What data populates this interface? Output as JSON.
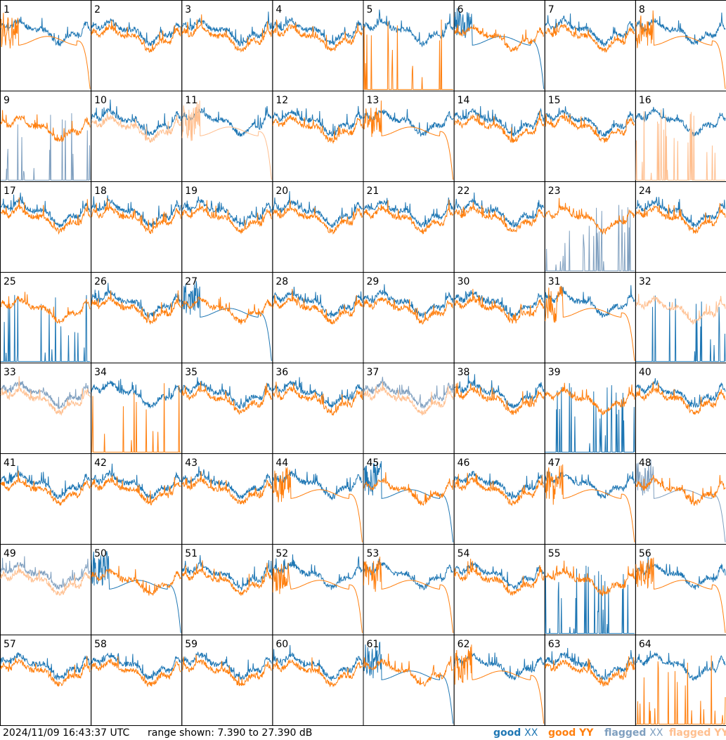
{
  "chart_data": {
    "type": "line",
    "panel_count": 64,
    "panel_labels": [
      "1",
      "2",
      "3",
      "4",
      "5",
      "6",
      "7",
      "8",
      "9",
      "10",
      "11",
      "12",
      "13",
      "14",
      "15",
      "16",
      "17",
      "18",
      "19",
      "20",
      "21",
      "22",
      "23",
      "24",
      "25",
      "26",
      "27",
      "28",
      "29",
      "30",
      "31",
      "32",
      "33",
      "34",
      "35",
      "36",
      "37",
      "38",
      "39",
      "40",
      "41",
      "42",
      "43",
      "44",
      "45",
      "46",
      "47",
      "48",
      "49",
      "50",
      "51",
      "52",
      "53",
      "54",
      "55",
      "56",
      "57",
      "58",
      "59",
      "60",
      "61",
      "62",
      "63",
      "64"
    ],
    "range_db": [
      7.39,
      27.39
    ],
    "grid": false,
    "legend_placement": "bottom-right",
    "series": [
      {
        "name": "good XX",
        "color": "#1f77b4"
      },
      {
        "name": "good YY",
        "color": "#ff7f0e"
      },
      {
        "name": "flagged XX",
        "color": "#7f9fbf"
      },
      {
        "name": "flagged YY",
        "color": "#ffbf8f"
      }
    ],
    "panel_states": {
      "1": {
        "xx": "good",
        "yy": "good-rolloff"
      },
      "5": {
        "xx": "good",
        "yy": "spikes"
      },
      "6": {
        "xx": "good-rolloff",
        "yy": "good"
      },
      "8": {
        "xx": "good",
        "yy": "good-rolloff"
      },
      "9": {
        "xx": "flagged-spikes",
        "yy": "good"
      },
      "10": {
        "xx": "good",
        "yy": "flagged"
      },
      "11": {
        "xx": "good",
        "yy": "flagged-rolloff"
      },
      "13": {
        "xx": "good",
        "yy": "good-rolloff"
      },
      "16": {
        "xx": "good",
        "yy": "flagged-spikes"
      },
      "23": {
        "xx": "flagged-spikes",
        "yy": "good"
      },
      "25": {
        "xx": "spikes",
        "yy": "good"
      },
      "27": {
        "xx": "good-rolloff",
        "yy": "good"
      },
      "31": {
        "xx": "good",
        "yy": "good-rolloff"
      },
      "32": {
        "xx": "spikes",
        "yy": "flagged"
      },
      "33": {
        "xx": "flagged",
        "yy": "flagged"
      },
      "34": {
        "xx": "good",
        "yy": "spikes"
      },
      "37": {
        "xx": "flagged",
        "yy": "flagged"
      },
      "39": {
        "xx": "spikes",
        "yy": "good"
      },
      "44": {
        "xx": "good",
        "yy": "good-rolloff"
      },
      "45": {
        "xx": "good-rolloff",
        "yy": "good"
      },
      "47": {
        "xx": "good",
        "yy": "good-rolloff"
      },
      "48": {
        "xx": "flagged-rolloff",
        "yy": "good"
      },
      "49": {
        "xx": "flagged",
        "yy": "flagged"
      },
      "50": {
        "xx": "good-rolloff",
        "yy": "good"
      },
      "52": {
        "xx": "good",
        "yy": "good-rolloff"
      },
      "53": {
        "xx": "good",
        "yy": "good-rolloff"
      },
      "55": {
        "xx": "spikes",
        "yy": "good"
      },
      "56": {
        "xx": "good",
        "yy": "good-rolloff"
      },
      "61": {
        "xx": "good-rolloff",
        "yy": "good"
      },
      "62": {
        "xx": "good",
        "yy": "good-rolloff"
      },
      "64": {
        "xx": "good",
        "yy": "spikes"
      }
    }
  },
  "footer": {
    "timestamp": "2024/11/09 16:43:37 UTC",
    "range_text": "range shown: 7.390 to 27.390 dB"
  },
  "legend": {
    "good_prefix": "good",
    "good_xx": "XX",
    "good_yy": "good YY",
    "flagged_prefix": "flagged",
    "flagged_xx": "XX",
    "flagged_yy": "flagged YY"
  },
  "colors": {
    "good_xx": "#1f77b4",
    "good_yy": "#ff7f0e",
    "flagged_xx": "#7f9fbf",
    "flagged_yy": "#ffbf8f"
  }
}
